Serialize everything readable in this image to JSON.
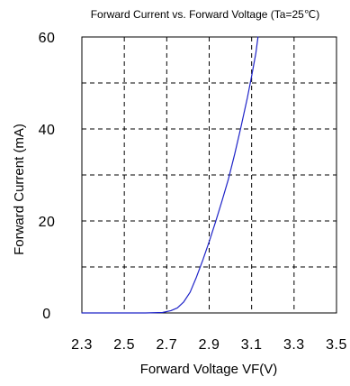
{
  "chart_data": {
    "type": "line",
    "title": "Forward Current vs. Forward Voltage (Ta=25℃)",
    "xlabel": "Forward Voltage VF(V)",
    "ylabel": "Forward Current (mA)",
    "xlim": [
      2.3,
      3.5
    ],
    "ylim": [
      0,
      60
    ],
    "x_ticks": [
      2.3,
      2.5,
      2.7,
      2.9,
      3.1,
      3.3,
      3.5
    ],
    "x_tick_labels": [
      "2.3",
      "2.5",
      "2.7",
      "2.9",
      "3.1",
      "3.3",
      "3.5"
    ],
    "y_ticks": [
      0,
      10,
      20,
      30,
      40,
      50,
      60
    ],
    "y_tick_labels": [
      "0",
      "20",
      "40",
      "60"
    ],
    "grid": true,
    "grid_style": "dashed",
    "line_color": "#1f24c8",
    "series": [
      {
        "x": [
          2.3,
          2.6,
          2.68,
          2.72,
          2.75,
          2.78,
          2.81,
          2.84,
          2.87,
          2.9,
          2.93,
          2.96,
          2.99,
          3.02,
          3.05,
          3.08,
          3.1,
          3.12,
          3.13
        ],
        "values": [
          0,
          0,
          0.1,
          0.5,
          1.1,
          2.4,
          4.5,
          7.8,
          11.5,
          15.5,
          19.8,
          24.3,
          29.0,
          34.5,
          40.5,
          46.8,
          51.5,
          56.5,
          60
        ]
      }
    ]
  }
}
